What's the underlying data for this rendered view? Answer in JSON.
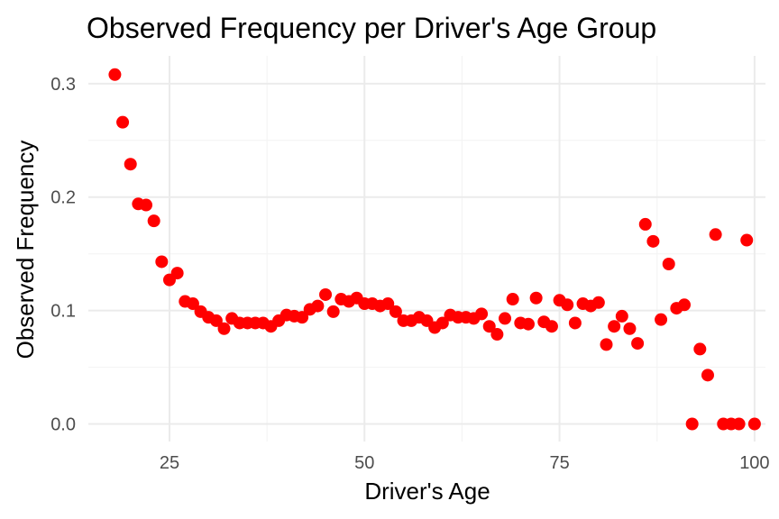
{
  "chart_data": {
    "type": "scatter",
    "title": "Observed Frequency per Driver's Age Group",
    "xlabel": "Driver's Age",
    "ylabel": "Observed Frequency",
    "xlim": [
      14.6,
      101.4
    ],
    "ylim": [
      -0.0155,
      0.3245
    ],
    "x_ticks": [
      25,
      50,
      75,
      100
    ],
    "y_ticks": [
      0.0,
      0.1,
      0.2,
      0.3
    ],
    "grid": true,
    "point_color": "#ff0000",
    "points": [
      [
        18,
        0.308
      ],
      [
        19,
        0.266
      ],
      [
        20,
        0.229
      ],
      [
        21,
        0.194
      ],
      [
        22,
        0.193
      ],
      [
        23,
        0.179
      ],
      [
        24,
        0.143
      ],
      [
        25,
        0.127
      ],
      [
        26,
        0.133
      ],
      [
        27,
        0.108
      ],
      [
        28,
        0.106
      ],
      [
        29,
        0.099
      ],
      [
        30,
        0.094
      ],
      [
        31,
        0.091
      ],
      [
        32,
        0.084
      ],
      [
        33,
        0.093
      ],
      [
        34,
        0.089
      ],
      [
        35,
        0.089
      ],
      [
        36,
        0.089
      ],
      [
        37,
        0.089
      ],
      [
        38,
        0.086
      ],
      [
        39,
        0.091
      ],
      [
        40,
        0.096
      ],
      [
        41,
        0.095
      ],
      [
        42,
        0.094
      ],
      [
        43,
        0.101
      ],
      [
        44,
        0.104
      ],
      [
        45,
        0.114
      ],
      [
        46,
        0.099
      ],
      [
        47,
        0.11
      ],
      [
        48,
        0.108
      ],
      [
        49,
        0.111
      ],
      [
        50,
        0.106
      ],
      [
        51,
        0.106
      ],
      [
        52,
        0.104
      ],
      [
        53,
        0.106
      ],
      [
        54,
        0.099
      ],
      [
        55,
        0.091
      ],
      [
        56,
        0.091
      ],
      [
        57,
        0.094
      ],
      [
        58,
        0.091
      ],
      [
        59,
        0.085
      ],
      [
        60,
        0.089
      ],
      [
        61,
        0.096
      ],
      [
        62,
        0.094
      ],
      [
        63,
        0.094
      ],
      [
        64,
        0.093
      ],
      [
        65,
        0.097
      ],
      [
        66,
        0.086
      ],
      [
        67,
        0.079
      ],
      [
        68,
        0.093
      ],
      [
        69,
        0.11
      ],
      [
        70,
        0.089
      ],
      [
        71,
        0.088
      ],
      [
        72,
        0.111
      ],
      [
        73,
        0.09
      ],
      [
        74,
        0.086
      ],
      [
        75,
        0.109
      ],
      [
        76,
        0.105
      ],
      [
        77,
        0.089
      ],
      [
        78,
        0.106
      ],
      [
        79,
        0.104
      ],
      [
        80,
        0.107
      ],
      [
        81,
        0.07
      ],
      [
        82,
        0.086
      ],
      [
        83,
        0.095
      ],
      [
        84,
        0.084
      ],
      [
        85,
        0.071
      ],
      [
        86,
        0.176
      ],
      [
        87,
        0.161
      ],
      [
        88,
        0.092
      ],
      [
        89,
        0.141
      ],
      [
        90,
        0.102
      ],
      [
        91,
        0.105
      ],
      [
        92,
        0.0
      ],
      [
        93,
        0.066
      ],
      [
        94,
        0.043
      ],
      [
        95,
        0.167
      ],
      [
        96,
        0.0
      ],
      [
        97,
        0.0
      ],
      [
        98,
        0.0
      ],
      [
        99,
        0.162
      ],
      [
        100,
        0.0
      ]
    ]
  }
}
